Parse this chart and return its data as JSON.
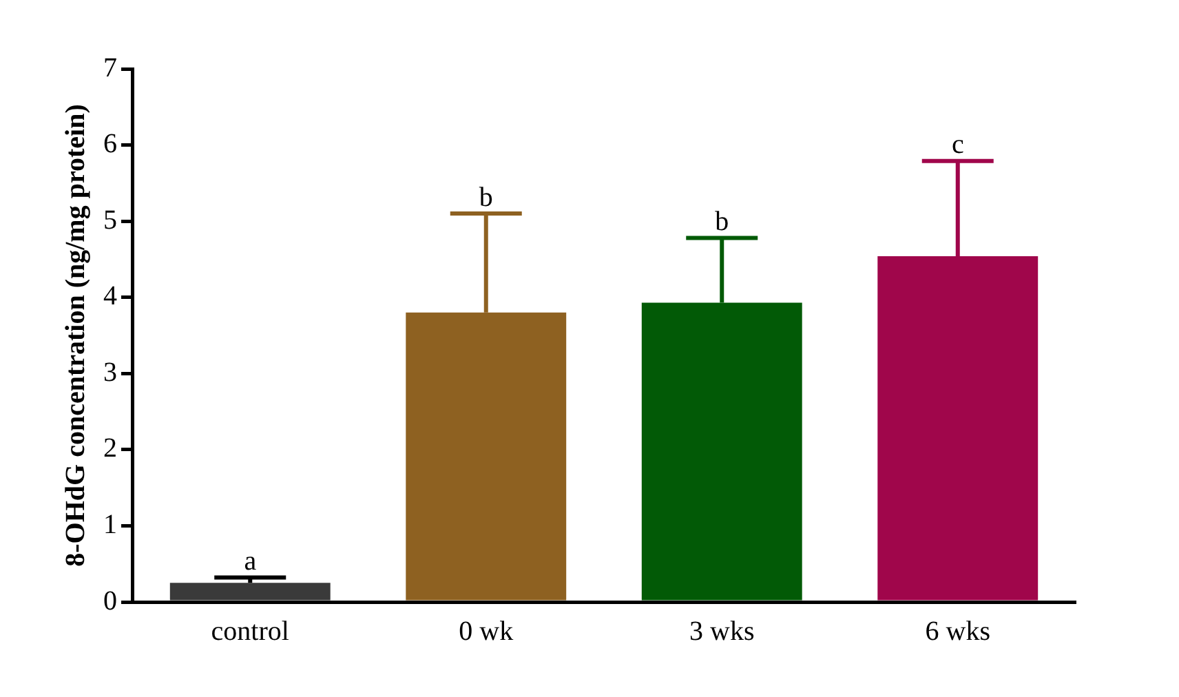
{
  "chart_data": {
    "type": "bar",
    "ylabel": "8-OHdG concentration (ng/mg protein)",
    "categories": [
      "control",
      "0 wk",
      "3 wks",
      "6 wks"
    ],
    "values": [
      0.25,
      3.8,
      3.93,
      4.54
    ],
    "colors": [
      "#3a3a3a",
      "#8e6121",
      "#025a06",
      "#a0064b"
    ],
    "errors": [
      [
        0.25,
        0.32
      ],
      [
        3.8,
        5.1
      ],
      [
        3.93,
        4.78
      ],
      [
        4.54,
        5.79
      ]
    ],
    "ylim": [
      0,
      7
    ],
    "yticks": [
      0,
      1,
      2,
      3,
      4,
      5,
      6,
      7
    ],
    "grid": false,
    "legend": false,
    "annotations": [
      {
        "text": "a",
        "x": "control",
        "y": 0.32
      },
      {
        "text": "b",
        "x": "0 wk",
        "y": 5.1
      },
      {
        "text": "b",
        "x": "3 wks",
        "y": 4.78
      },
      {
        "text": "c",
        "x": "6 wks",
        "y": 5.79
      }
    ]
  }
}
